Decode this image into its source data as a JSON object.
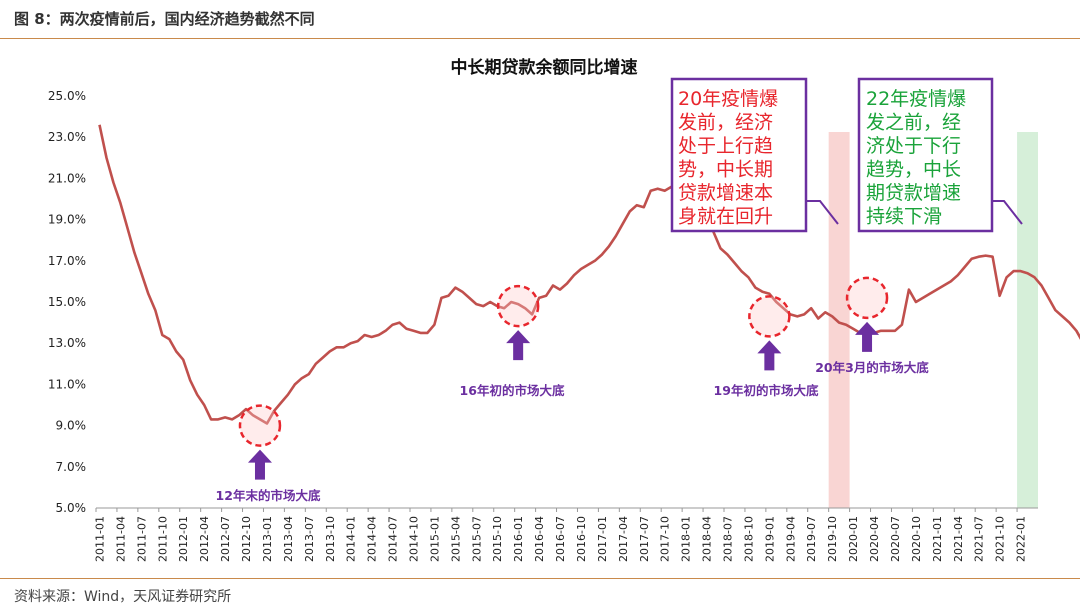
{
  "figure_label": "图 8：两次疫情前后，国内经济趋势截然不同",
  "source": "资料来源：Wind，天风证券研究所",
  "chart_data": {
    "type": "line",
    "title": "中长期贷款余额同比增速",
    "ylim": [
      5.0,
      25.0
    ],
    "yticks": [
      "5.0%",
      "7.0%",
      "9.0%",
      "11.0%",
      "13.0%",
      "15.0%",
      "17.0%",
      "19.0%",
      "21.0%",
      "23.0%",
      "25.0%"
    ],
    "xticks": [
      "2011-01",
      "2011-04",
      "2011-07",
      "2011-10",
      "2012-01",
      "2012-04",
      "2012-07",
      "2012-10",
      "2013-01",
      "2013-04",
      "2013-07",
      "2013-10",
      "2014-01",
      "2014-04",
      "2014-07",
      "2014-10",
      "2015-01",
      "2015-04",
      "2015-07",
      "2015-10",
      "2016-01",
      "2016-04",
      "2016-07",
      "2016-10",
      "2017-01",
      "2017-04",
      "2017-07",
      "2017-10",
      "2018-01",
      "2018-04",
      "2018-07",
      "2018-10",
      "2019-01",
      "2019-04",
      "2019-07",
      "2019-10",
      "2020-01",
      "2020-04",
      "2020-07",
      "2020-10",
      "2021-01",
      "2021-04",
      "2021-07",
      "2021-10",
      "2022-01"
    ],
    "series": [
      {
        "color": "#c0504d",
        "x_start": "2011-01",
        "values": [
          23.6,
          22.0,
          20.8,
          19.8,
          18.6,
          17.4,
          16.4,
          15.4,
          14.6,
          13.4,
          13.2,
          12.6,
          12.2,
          11.2,
          10.5,
          10.0,
          9.3,
          9.3,
          9.4,
          9.3,
          9.5,
          9.8,
          9.5,
          9.3,
          9.1,
          9.7,
          10.1,
          10.5,
          11.0,
          11.3,
          11.5,
          12.0,
          12.3,
          12.6,
          12.8,
          12.8,
          13.0,
          13.1,
          13.4,
          13.3,
          13.4,
          13.6,
          13.9,
          14.0,
          13.7,
          13.6,
          13.5,
          13.5,
          13.9,
          15.2,
          15.3,
          15.7,
          15.5,
          15.2,
          14.9,
          14.8,
          15.0,
          14.8,
          14.7,
          15.0,
          14.9,
          14.7,
          14.4,
          15.2,
          15.3,
          15.8,
          15.6,
          15.9,
          16.3,
          16.6,
          16.8,
          17.0,
          17.3,
          17.7,
          18.2,
          18.8,
          19.4,
          19.7,
          19.6,
          20.4,
          20.5,
          20.4,
          20.6,
          20.8,
          20.5,
          20.4,
          20.2,
          19.4,
          18.4,
          17.6,
          17.3,
          16.9,
          16.5,
          16.2,
          15.7,
          15.5,
          15.4,
          15.0,
          14.7,
          14.4,
          14.3,
          14.4,
          14.7,
          14.2,
          14.5,
          14.3,
          14.0,
          13.9,
          13.7,
          13.5,
          13.5,
          13.5,
          13.6,
          13.6,
          13.6,
          13.9,
          15.6,
          15.0,
          15.2,
          15.4,
          15.6,
          15.8,
          16.0,
          16.3,
          16.7,
          17.1,
          17.2,
          17.25,
          17.2,
          15.3,
          16.2,
          16.5,
          16.5,
          16.4,
          16.2,
          15.8,
          15.2,
          14.6,
          14.3,
          14.0,
          13.6,
          13.0,
          12.0,
          11.6
        ]
      }
    ],
    "shaded_bands": [
      {
        "from": "2019-10",
        "to": "2019-12",
        "color": "#f9d5d3"
      },
      {
        "from": "2022-01",
        "to": "2022-03",
        "color": "#d6efd9"
      }
    ],
    "callouts": [
      {
        "at": "2012-12",
        "value": 9.0,
        "label": "12年末的市场大底"
      },
      {
        "at": "2016-01",
        "value": 14.8,
        "label": "16年初的市场大底"
      },
      {
        "at": "2019-01",
        "value": 14.3,
        "label": "19年初的市场大底"
      },
      {
        "at": "2020-03",
        "value": 15.2,
        "label": "20年3月的市场大底"
      }
    ],
    "text_boxes": [
      {
        "lines": [
          "20年疫情爆",
          "发前，经济",
          "处于上行趋",
          "势，中长期",
          "贷款增速本",
          "身就在回升"
        ],
        "color": "#e8262d"
      },
      {
        "lines": [
          "22年疫情爆",
          "发之前，经",
          "济处于下行",
          "趋势，中长",
          "期贷款增速",
          "持续下滑"
        ],
        "color": "#1aa33a"
      }
    ]
  }
}
